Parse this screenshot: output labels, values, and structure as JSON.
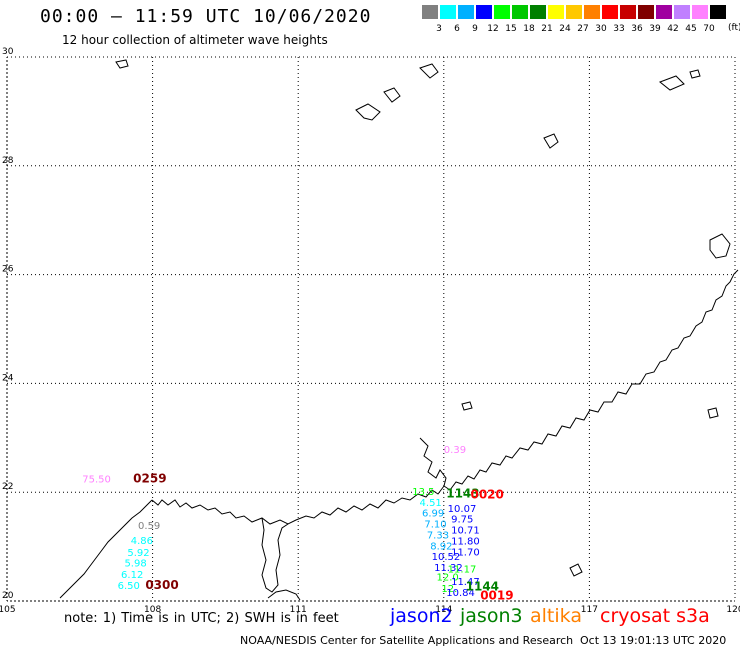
{
  "header": {
    "title": "00:00 – 11:59 UTC 10/06/2020",
    "subtitle": "12 hour collection of altimeter wave heights"
  },
  "scale": {
    "colors": [
      "#808080",
      "#00ffff",
      "#00b0ff",
      "#0000ff",
      "#00ff00",
      "#00c800",
      "#008000",
      "#ffff00",
      "#ffc800",
      "#ff8000",
      "#ff0000",
      "#c80000",
      "#800000",
      "#a000a0",
      "#c080ff",
      "#ff80ff",
      "#000000"
    ],
    "labels": [
      "3",
      "6",
      "9",
      "12",
      "15",
      "18",
      "21",
      "24",
      "27",
      "30",
      "33",
      "36",
      "39",
      "42",
      "45",
      "70"
    ],
    "unit": "(ft)"
  },
  "axes": {
    "lat_labels": [
      "30",
      "28",
      "26",
      "24",
      "22",
      "20"
    ],
    "lon_labels": [
      "105",
      "108",
      "111",
      "114",
      "117",
      "120"
    ]
  },
  "observations": [
    {
      "value": "75.50",
      "lon": 106.55,
      "lat": 22.18,
      "color": "#ff80ff"
    },
    {
      "value": "0259",
      "lon": 107.6,
      "lat": 22.18,
      "color": "#800000"
    },
    {
      "value": "0.59",
      "lon": 107.7,
      "lat": 21.32,
      "color": "#808080"
    },
    {
      "value": "4.86",
      "lon": 107.55,
      "lat": 21.05,
      "color": "#00ffff"
    },
    {
      "value": "5.92",
      "lon": 107.48,
      "lat": 20.83,
      "color": "#00ffff"
    },
    {
      "value": "5.98",
      "lon": 107.42,
      "lat": 20.63,
      "color": "#00ffff"
    },
    {
      "value": "6.12",
      "lon": 107.35,
      "lat": 20.42,
      "color": "#00ffff"
    },
    {
      "value": "6.50",
      "lon": 107.28,
      "lat": 20.22,
      "color": "#00ffff"
    },
    {
      "value": "0300",
      "lon": 107.85,
      "lat": 20.22,
      "color": "#800000"
    },
    {
      "value": "0.39",
      "lon": 114.0,
      "lat": 22.72,
      "color": "#ff80ff"
    },
    {
      "value": "4.51",
      "lon": 113.5,
      "lat": 21.75,
      "color": "#00ffff"
    },
    {
      "value": "6.99",
      "lon": 113.55,
      "lat": 21.55,
      "color": "#00b0ff"
    },
    {
      "value": "7.10",
      "lon": 113.6,
      "lat": 21.35,
      "color": "#00b0ff"
    },
    {
      "value": "7.33",
      "lon": 113.65,
      "lat": 21.15,
      "color": "#00b0ff"
    },
    {
      "value": "8.92",
      "lon": 113.72,
      "lat": 20.95,
      "color": "#00b0ff"
    },
    {
      "value": "10.52",
      "lon": 113.75,
      "lat": 20.75,
      "color": "#0000ff"
    },
    {
      "value": "11.32",
      "lon": 113.8,
      "lat": 20.55,
      "color": "#0000ff"
    },
    {
      "value": "12.0",
      "lon": 113.85,
      "lat": 20.38,
      "color": "#00ff00"
    },
    {
      "value": "12.",
      "lon": 113.95,
      "lat": 20.17,
      "color": "#00ff00"
    },
    {
      "value": "10.07",
      "lon": 114.08,
      "lat": 21.64,
      "color": "#0000ff"
    },
    {
      "value": "9.75",
      "lon": 114.15,
      "lat": 21.44,
      "color": "#0000ff"
    },
    {
      "value": "10.71",
      "lon": 114.15,
      "lat": 21.24,
      "color": "#0000ff"
    },
    {
      "value": "11.80",
      "lon": 114.15,
      "lat": 21.04,
      "color": "#0000ff"
    },
    {
      "value": "11.70",
      "lon": 114.15,
      "lat": 20.84,
      "color": "#0000ff"
    },
    {
      "value": "11.17",
      "lon": 114.08,
      "lat": 20.52,
      "color": "#00ff00"
    },
    {
      "value": "11.47",
      "lon": 114.15,
      "lat": 20.29,
      "color": "#0000ff"
    },
    {
      "value": "10.84",
      "lon": 114.05,
      "lat": 20.09,
      "color": "#0000ff"
    },
    {
      "value": "1143",
      "lon": 114.05,
      "lat": 21.9,
      "color": "#008000"
    },
    {
      "value": "1144",
      "lon": 114.45,
      "lat": 20.19,
      "color": "#008000"
    },
    {
      "value": "0020",
      "lon": 114.55,
      "lat": 21.88,
      "color": "#ff0000"
    },
    {
      "value": "0019",
      "lon": 114.75,
      "lat": 20.03,
      "color": "#ff0000"
    },
    {
      "value": "13.5",
      "lon": 113.35,
      "lat": 21.95,
      "color": "#00ff00"
    }
  ],
  "footer": {
    "note": "note: 1) Time is in UTC; 2) SWH is in feet",
    "satellites": [
      {
        "name": "jason2",
        "color": "#0000ff"
      },
      {
        "name": "jason3",
        "color": "#008000"
      },
      {
        "name": "altika",
        "color": "#ff8000"
      },
      {
        "name": "cryosat s3a",
        "color": "#ff0000"
      }
    ],
    "credit": "NOAA/NESDIS Center for Satellite Applications and Research",
    "timestamp": "Oct 13 19:01:13 UTC 2020"
  }
}
